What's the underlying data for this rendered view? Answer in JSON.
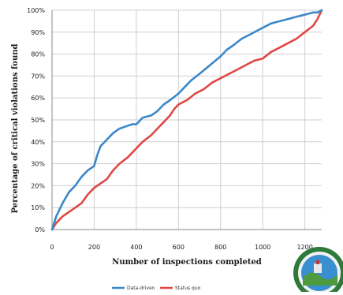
{
  "chart_data": {
    "type": "line",
    "xlabel": "Number of inspections completed",
    "ylabel": "Percentage of critical violations found",
    "xlim": [
      0,
      1280
    ],
    "ylim": [
      0,
      100
    ],
    "x_ticks": [
      "0",
      "200",
      "400",
      "600",
      "800",
      "1000",
      "1200"
    ],
    "y_ticks": [
      "0%",
      "10%",
      "20%",
      "30%",
      "40%",
      "50%",
      "60%",
      "70%",
      "80%",
      "90%",
      "100%"
    ],
    "grid": true,
    "legend_placement": "bottom-center",
    "series": [
      {
        "name": "Data-driven",
        "color": "#3b87c9",
        "x": [
          0,
          20,
          50,
          80,
          110,
          140,
          170,
          200,
          215,
          230,
          260,
          290,
          320,
          350,
          380,
          400,
          430,
          470,
          500,
          530,
          560,
          600,
          630,
          660,
          700,
          750,
          800,
          830,
          860,
          900,
          940,
          980,
          1000,
          1040,
          1080,
          1120,
          1160,
          1200,
          1240,
          1260,
          1280
        ],
        "y": [
          0,
          6,
          12,
          17,
          20,
          24,
          27,
          29,
          34,
          38,
          41,
          44,
          46,
          47,
          48,
          48,
          51,
          52,
          54,
          57,
          59,
          62,
          65,
          68,
          71,
          75,
          79,
          82,
          84,
          87,
          89,
          91,
          92,
          94,
          95,
          96,
          97,
          98,
          99,
          99,
          100
        ]
      },
      {
        "name": "Status quo",
        "color": "#e04745",
        "x": [
          0,
          20,
          50,
          80,
          110,
          140,
          170,
          200,
          230,
          260,
          290,
          320,
          360,
          400,
          430,
          470,
          500,
          530,
          560,
          580,
          600,
          640,
          680,
          720,
          760,
          800,
          840,
          880,
          920,
          960,
          1000,
          1040,
          1080,
          1120,
          1160,
          1200,
          1240,
          1260,
          1280
        ],
        "y": [
          0,
          3,
          6,
          8,
          10,
          12,
          16,
          19,
          21,
          23,
          27,
          30,
          33,
          37,
          40,
          43,
          46,
          49,
          52,
          55,
          57,
          59,
          62,
          64,
          67,
          69,
          71,
          73,
          75,
          77,
          78,
          81,
          83,
          85,
          87,
          90,
          93,
          96,
          100
        ]
      }
    ]
  }
}
